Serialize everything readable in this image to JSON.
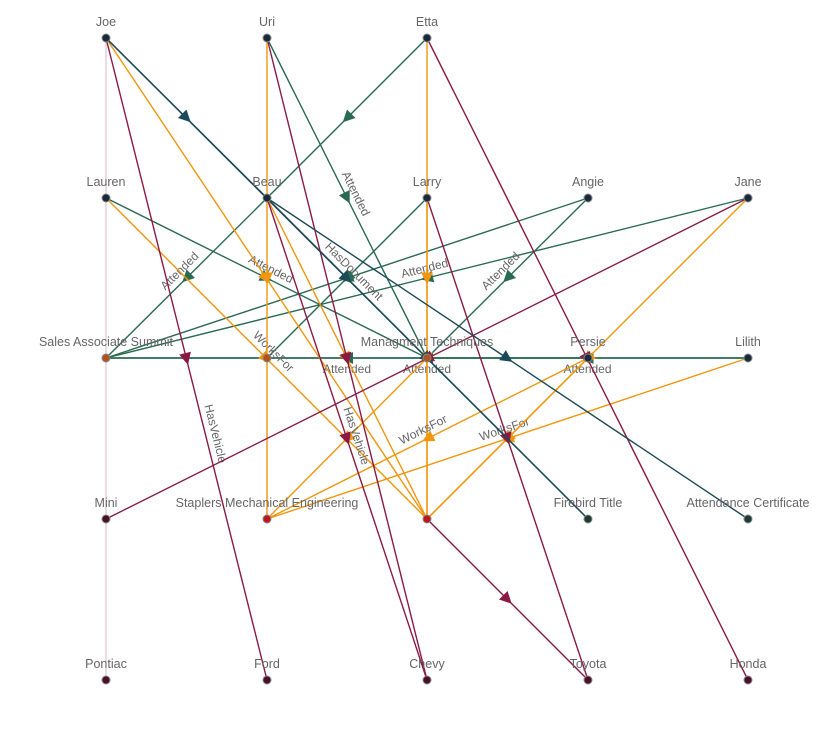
{
  "colors": {
    "Attended": "#2b6a52",
    "WorksFor": "#f0960f",
    "HasVehicle": "#8a1a44",
    "HasDocument": "#1c4a58",
    "Faint": "#d8b8c4"
  },
  "nodes": [
    {
      "id": "joe",
      "label": "Joe",
      "col": 0,
      "row": 0,
      "color": "#1a2a3a"
    },
    {
      "id": "uri",
      "label": "Uri",
      "col": 1,
      "row": 0,
      "color": "#1a2a3a"
    },
    {
      "id": "etta",
      "label": "Etta",
      "col": 2,
      "row": 0,
      "color": "#1a2a3a"
    },
    {
      "id": "lauren",
      "label": "Lauren",
      "col": 0,
      "row": 1,
      "color": "#1a2a3a"
    },
    {
      "id": "beau",
      "label": "Beau",
      "col": 1,
      "row": 1,
      "color": "#1a2a3a"
    },
    {
      "id": "larry",
      "label": "Larry",
      "col": 2,
      "row": 1,
      "color": "#1a2a3a"
    },
    {
      "id": "angie",
      "label": "Angie",
      "col": 3,
      "row": 1,
      "color": "#1a2a3a"
    },
    {
      "id": "jane",
      "label": "Jane",
      "col": 4,
      "row": 1,
      "color": "#1a2a3a"
    },
    {
      "id": "sas",
      "label": "Sales Associate Summit",
      "col": 0,
      "row": 2,
      "color": "#b0531e"
    },
    {
      "id": "n1",
      "label": "",
      "col": 1,
      "row": 2,
      "color": "#b0531e"
    },
    {
      "id": "mt",
      "label": "Managment Techniques",
      "col": 2,
      "row": 2,
      "color": "#b0531e"
    },
    {
      "id": "persie",
      "label": "Persie",
      "col": 3,
      "row": 2,
      "color": "#1a2a3a"
    },
    {
      "id": "lilith",
      "label": "Lilith",
      "col": 4,
      "row": 2,
      "color": "#1a2a3a"
    },
    {
      "id": "mini",
      "label": "Mini",
      "col": 0,
      "row": 3,
      "color": "#4a1028"
    },
    {
      "id": "staplers",
      "label": "Staplers Mechanical Engineering",
      "col": 1,
      "row": 3,
      "color": "#c0141c"
    },
    {
      "id": "n2",
      "label": "",
      "col": 2,
      "row": 3,
      "color": "#c0141c"
    },
    {
      "id": "firebird",
      "label": "Firebird Title",
      "col": 3,
      "row": 3,
      "color": "#1e3a34"
    },
    {
      "id": "attcert",
      "label": "Attendance Certificate",
      "col": 4,
      "row": 3,
      "color": "#1e3a34"
    },
    {
      "id": "pontiac",
      "label": "Pontiac",
      "col": 0,
      "row": 4,
      "color": "#4a1028"
    },
    {
      "id": "ford",
      "label": "Ford",
      "col": 1,
      "row": 4,
      "color": "#4a1028"
    },
    {
      "id": "chevy",
      "label": "Chevy",
      "col": 2,
      "row": 4,
      "color": "#4a1028"
    },
    {
      "id": "toyota",
      "label": "Toyota",
      "col": 3,
      "row": 4,
      "color": "#4a1028"
    },
    {
      "id": "honda",
      "label": "Honda",
      "col": 4,
      "row": 4,
      "color": "#4a1028"
    }
  ],
  "edges": [
    {
      "from": "joe",
      "to": "pontiac",
      "type": "Faint",
      "label": ""
    },
    {
      "from": "etta",
      "to": "beau",
      "type": "Attended",
      "label": ""
    },
    {
      "from": "beau",
      "to": "sas",
      "type": "Attended",
      "label": "Attended"
    },
    {
      "from": "lauren",
      "to": "mt",
      "type": "Attended",
      "label": "Attended"
    },
    {
      "from": "uri",
      "to": "mt",
      "type": "Attended",
      "label": "Attended"
    },
    {
      "from": "larry",
      "to": "n1",
      "type": "Attended",
      "label": ""
    },
    {
      "from": "angie",
      "to": "sas",
      "type": "Attended",
      "label": ""
    },
    {
      "from": "jane",
      "to": "sas",
      "type": "Attended",
      "label": "Attended"
    },
    {
      "from": "angie",
      "to": "mt",
      "type": "Attended",
      "label": "Attended"
    },
    {
      "from": "persie",
      "to": "sas",
      "type": "Attended",
      "label": "Attended"
    },
    {
      "from": "lilith",
      "to": "sas",
      "type": "Attended",
      "label": "Attended"
    },
    {
      "from": "lilith",
      "to": "mt",
      "type": "Attended",
      "label": "Attended"
    },
    {
      "from": "joe",
      "to": "n2",
      "type": "WorksFor",
      "label": ""
    },
    {
      "from": "lauren",
      "to": "n2",
      "type": "WorksFor",
      "label": "WorksFor"
    },
    {
      "from": "uri",
      "to": "staplers",
      "type": "WorksFor",
      "label": ""
    },
    {
      "from": "etta",
      "to": "n2",
      "type": "WorksFor",
      "label": ""
    },
    {
      "from": "beau",
      "to": "n2",
      "type": "WorksFor",
      "label": ""
    },
    {
      "from": "larry",
      "to": "n2",
      "type": "WorksFor",
      "label": ""
    },
    {
      "from": "persie",
      "to": "staplers",
      "type": "WorksFor",
      "label": "WorksFor"
    },
    {
      "from": "lilith",
      "to": "staplers",
      "type": "WorksFor",
      "label": "WorksFor"
    },
    {
      "from": "jane",
      "to": "n2",
      "type": "WorksFor",
      "label": ""
    },
    {
      "from": "persie",
      "to": "n2",
      "type": "WorksFor",
      "label": ""
    },
    {
      "from": "mt",
      "to": "staplers",
      "type": "WorksFor",
      "label": ""
    },
    {
      "from": "joe",
      "to": "ford",
      "type": "HasVehicle",
      "label": "HasVehicle"
    },
    {
      "from": "beau",
      "to": "chevy",
      "type": "HasVehicle",
      "label": "HasVehicle"
    },
    {
      "from": "uri",
      "to": "chevy",
      "type": "HasVehicle",
      "label": ""
    },
    {
      "from": "etta",
      "to": "honda",
      "type": "HasVehicle",
      "label": ""
    },
    {
      "from": "jane",
      "to": "mini",
      "type": "HasVehicle",
      "label": ""
    },
    {
      "from": "larry",
      "to": "toyota",
      "type": "HasVehicle",
      "label": ""
    },
    {
      "from": "n2",
      "to": "toyota",
      "type": "HasVehicle",
      "label": ""
    },
    {
      "from": "joe",
      "to": "beau",
      "type": "HasDocument",
      "label": ""
    },
    {
      "from": "joe",
      "to": "firebird",
      "type": "HasDocument",
      "label": "HasDocument"
    },
    {
      "from": "beau",
      "to": "attcert",
      "type": "HasDocument",
      "label": ""
    },
    {
      "from": "beau",
      "to": "firebird",
      "type": "HasDocument",
      "label": ""
    }
  ]
}
